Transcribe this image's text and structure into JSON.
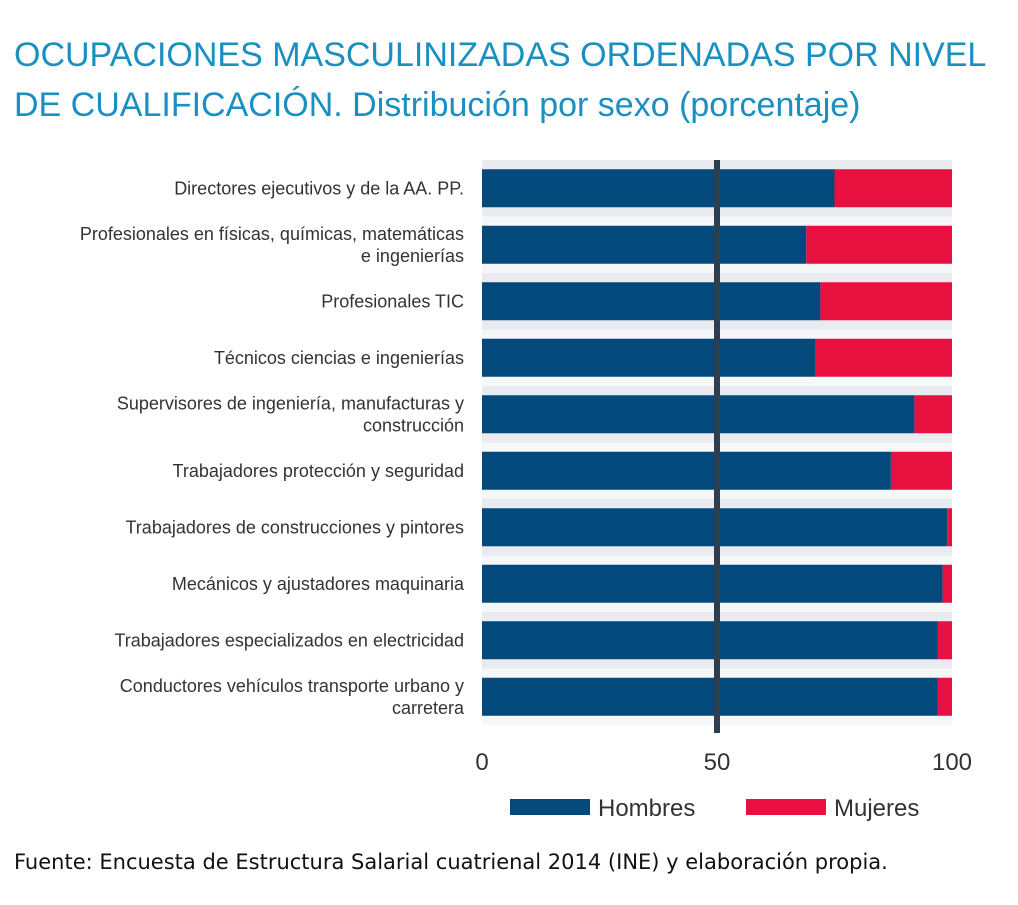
{
  "title": "OCUPACIONES MASCULINIZADAS ORDENADAS POR NIVEL DE CUALIFICACIÓN. Distribución por sexo (porcentaje)",
  "source": "Fuente: Encuesta de Estructura Salarial cuatrienal 2014 (INE) y elaboración propia.",
  "colors": {
    "hombres": "#03497b",
    "mujeres": "#e8103e",
    "band": "#e9ebf0",
    "reference_line": "#2e3e4e",
    "title": "#1a8fc2"
  },
  "chart_data": {
    "type": "bar",
    "orientation": "horizontal",
    "stacked": true,
    "categories": [
      [
        "Directores ejecutivos y de la AA. PP."
      ],
      [
        "Profesionales en físicas, químicas, matemáticas",
        "e ingenierías"
      ],
      [
        "Profesionales TIC"
      ],
      [
        "Técnicos ciencias e ingenierías"
      ],
      [
        "Supervisores de ingeniería, manufacturas y",
        "construcción"
      ],
      [
        "Trabajadores protección y seguridad"
      ],
      [
        "Trabajadores de construcciones y pintores"
      ],
      [
        "Mecánicos y ajustadores  maquinaria"
      ],
      [
        "Trabajadores especializados en electricidad"
      ],
      [
        "Conductores vehículos transporte urbano y",
        "carretera"
      ]
    ],
    "series": [
      {
        "name": "Hombres",
        "color": "#03497b",
        "values": [
          75,
          69,
          72,
          71,
          92,
          87,
          99,
          98,
          97,
          97
        ]
      },
      {
        "name": "Mujeres",
        "color": "#e8103e",
        "values": [
          25,
          31,
          28,
          29,
          8,
          13,
          1,
          2,
          3,
          3
        ]
      }
    ],
    "xlim": [
      0,
      100
    ],
    "xticks": [
      "0",
      "50",
      "100"
    ],
    "reference_line": 50,
    "legend": "bottom"
  }
}
